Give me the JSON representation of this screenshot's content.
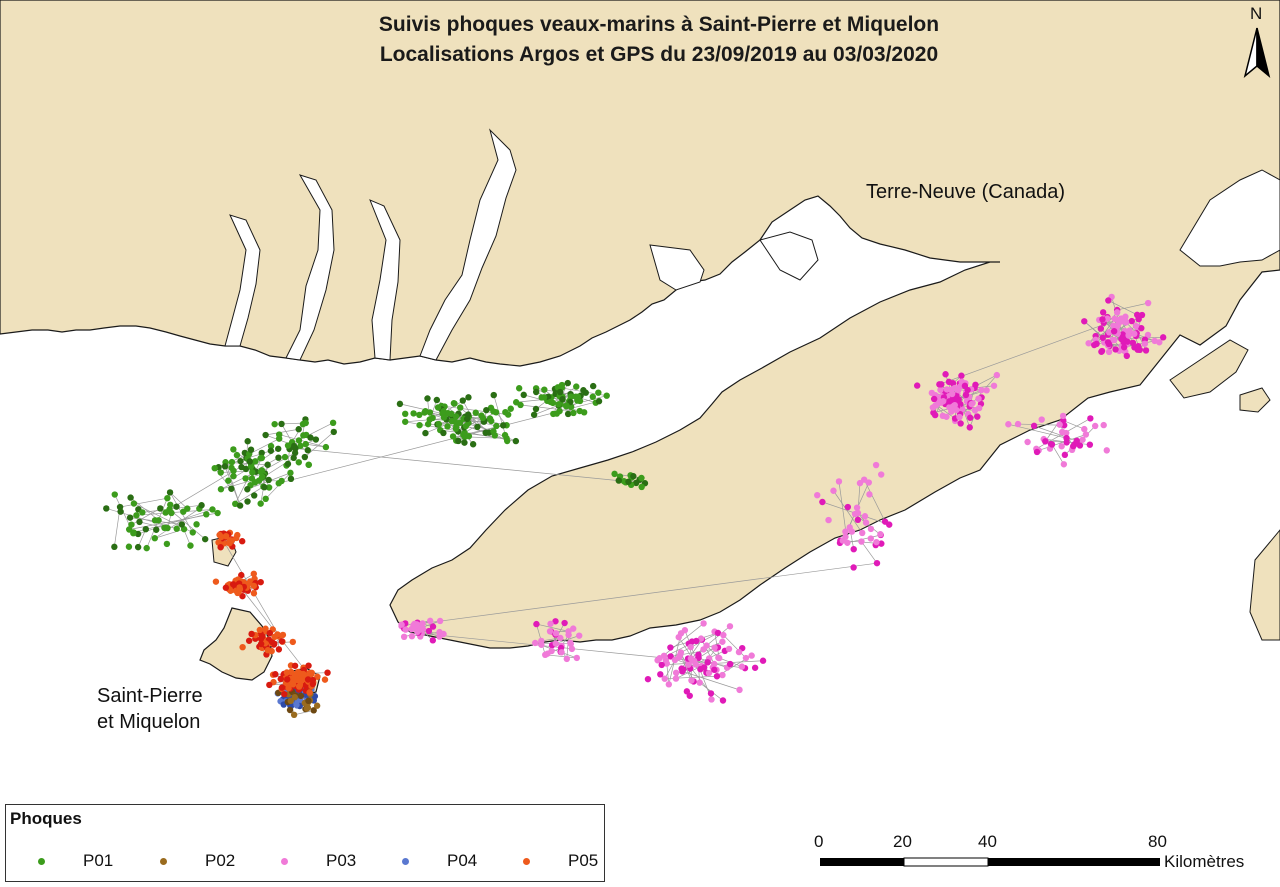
{
  "map": {
    "title_line1": "Suivis phoques veaux-marins à Saint-Pierre et Miquelon",
    "title_line2": "Localisations Argos et GPS du 23/09/2019 au 03/03/2020",
    "labels": {
      "newfoundland": "Terre-Neuve (Canada)",
      "spm_line1": "Saint-Pierre",
      "spm_line2": "et Miquelon"
    },
    "north_label": "N",
    "colors": {
      "land": "#efe1bd",
      "coast": "#1a1a1a",
      "sea": "#ffffff",
      "track_line": "#9a9a9a"
    }
  },
  "legend": {
    "title": "Phoques",
    "items": [
      {
        "label": "P01",
        "color": "#3c9c1c"
      },
      {
        "label": "P02",
        "color": "#9a6b1e"
      },
      {
        "label": "P03",
        "color": "#f07ad8"
      },
      {
        "label": "P04",
        "color": "#5a78d0"
      },
      {
        "label": "P05",
        "color": "#ee5a1c"
      }
    ]
  },
  "scale_bar": {
    "ticks": [
      "0",
      "20",
      "40",
      "80"
    ],
    "unit": "Kilomètres"
  }
}
